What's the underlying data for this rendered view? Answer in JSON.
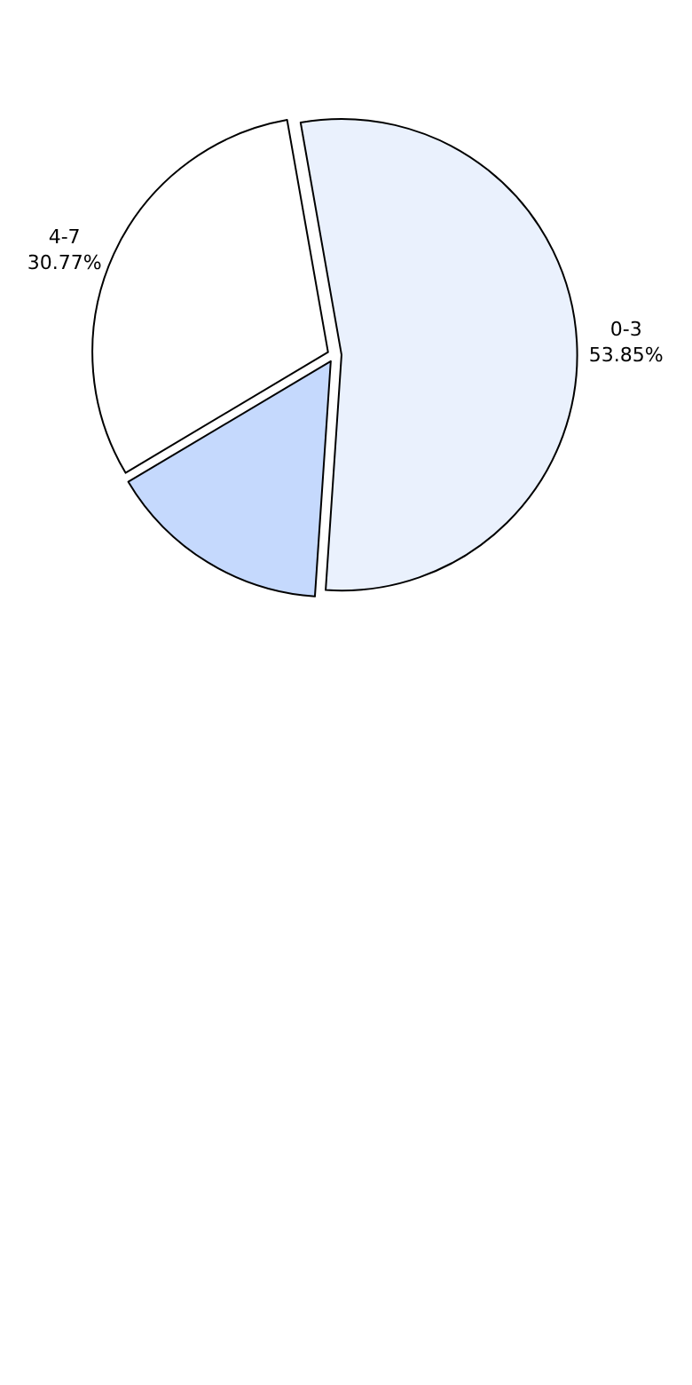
{
  "chart_data": {
    "type": "pie",
    "categories": [
      "0-3",
      "4-7",
      null
    ],
    "values": [
      53.85,
      30.77,
      15.38
    ],
    "colors": [
      "#eaf1fd",
      "#ffffff",
      "#c5d9fd"
    ],
    "value_labels": [
      "53.85%",
      "30.77%",
      null
    ]
  }
}
